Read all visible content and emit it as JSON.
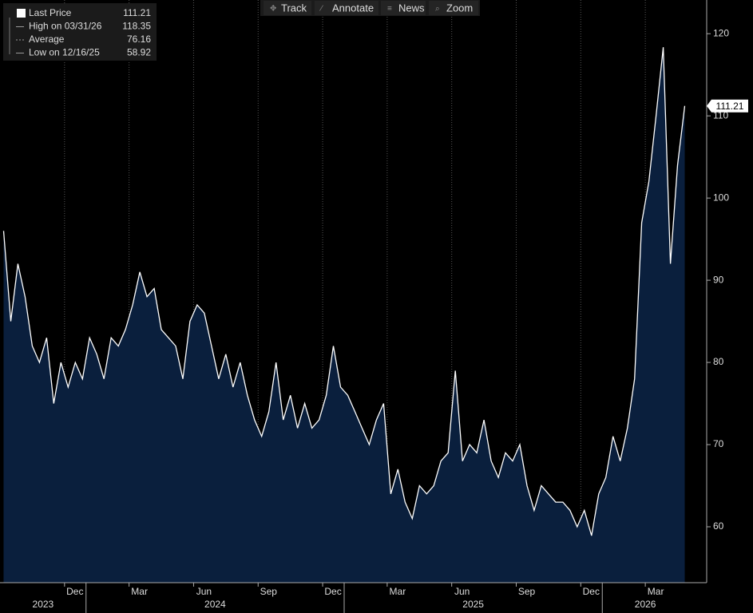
{
  "chart_data": {
    "type": "area",
    "toolbar": [
      "Track",
      "Annotate",
      "News",
      "Zoom"
    ],
    "legend": [
      {
        "name": "Last Price",
        "value": 111.21
      },
      {
        "name": "High on 03/31/26",
        "value": 118.35
      },
      {
        "name": "Average",
        "value": 76.16
      },
      {
        "name": "Low on 12/16/25",
        "value": 58.92
      }
    ],
    "x": [
      "2023-09",
      "2023-09",
      "2023-09",
      "2023-10",
      "2023-10",
      "2023-10",
      "2023-11",
      "2023-11",
      "2023-11",
      "2023-12",
      "2023-12",
      "2023-12",
      "2024-01",
      "2024-01",
      "2024-01",
      "2024-02",
      "2024-02",
      "2024-02",
      "2024-03",
      "2024-03",
      "2024-03",
      "2024-04",
      "2024-04",
      "2024-04",
      "2024-05",
      "2024-05",
      "2024-05",
      "2024-06",
      "2024-06",
      "2024-06",
      "2024-07",
      "2024-07",
      "2024-07",
      "2024-08",
      "2024-08",
      "2024-08",
      "2024-09",
      "2024-09",
      "2024-09",
      "2024-10",
      "2024-10",
      "2024-10",
      "2024-11",
      "2024-11",
      "2024-11",
      "2024-12",
      "2024-12",
      "2024-12",
      "2025-01",
      "2025-01",
      "2025-01",
      "2025-02",
      "2025-02",
      "2025-02",
      "2025-03",
      "2025-03",
      "2025-03",
      "2025-04",
      "2025-04",
      "2025-04",
      "2025-05",
      "2025-05",
      "2025-05",
      "2025-06",
      "2025-06",
      "2025-06",
      "2025-07",
      "2025-07",
      "2025-07",
      "2025-08",
      "2025-08",
      "2025-08",
      "2025-09",
      "2025-09",
      "2025-09",
      "2025-10",
      "2025-10",
      "2025-10",
      "2025-11",
      "2025-11",
      "2025-11",
      "2025-12",
      "2025-12",
      "2025-12",
      "2026-01",
      "2026-01",
      "2026-01",
      "2026-02",
      "2026-02",
      "2026-02",
      "2026-03",
      "2026-03",
      "2026-03",
      "2026-04",
      "2026-04",
      "2026-04"
    ],
    "values": [
      96,
      85,
      92,
      88,
      82,
      80,
      83,
      75,
      80,
      77,
      80,
      78,
      83,
      81,
      78,
      83,
      82,
      84,
      87,
      91,
      88,
      89,
      84,
      83,
      82,
      78,
      85,
      87,
      86,
      82,
      78,
      81,
      77,
      80,
      76,
      73,
      71,
      74,
      80,
      73,
      76,
      72,
      75,
      72,
      73,
      76,
      82,
      77,
      76,
      74,
      72,
      70,
      73,
      75,
      64,
      67,
      63,
      61,
      65,
      64,
      65,
      68,
      69,
      79,
      68,
      70,
      69,
      73,
      68,
      66,
      69,
      68,
      70,
      65,
      62,
      65,
      64,
      63,
      63,
      62,
      60,
      62,
      58.92,
      64,
      66,
      71,
      68,
      72,
      78,
      97,
      102,
      110,
      118.35,
      92,
      104,
      111.21
    ],
    "color": "#ffffff",
    "fill": "#0a1f3d",
    "ylim": [
      53.2,
      124.1
    ],
    "yticks": [
      60,
      70,
      80,
      90,
      100,
      110,
      120
    ],
    "xticks": [
      {
        "value": "2023-12",
        "label": "Dec"
      },
      {
        "value": "2024-03",
        "label": "Mar"
      },
      {
        "value": "2024-06",
        "label": "Jun"
      },
      {
        "value": "2024-09",
        "label": "Sep"
      },
      {
        "value": "2024-12",
        "label": "Dec"
      },
      {
        "value": "2025-03",
        "label": "Mar"
      },
      {
        "value": "2025-06",
        "label": "Jun"
      },
      {
        "value": "2025-09",
        "label": "Sep"
      },
      {
        "value": "2025-12",
        "label": "Dec"
      },
      {
        "value": "2026-03",
        "label": "Mar"
      }
    ],
    "years": [
      "2023",
      "2024",
      "2025",
      "2026"
    ],
    "grid": "x"
  }
}
